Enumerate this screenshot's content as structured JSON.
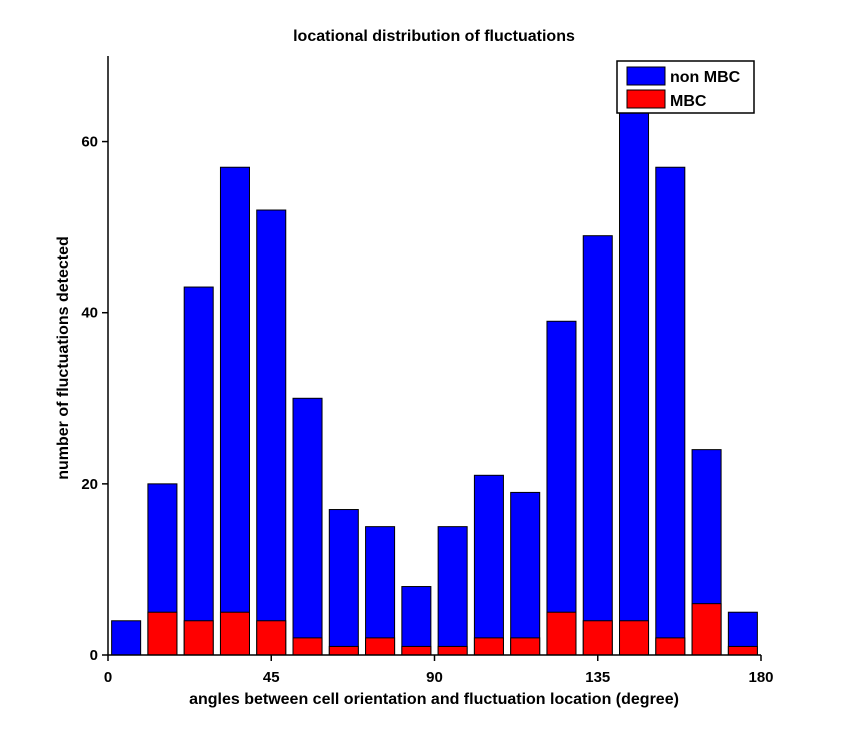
{
  "chart_data": {
    "type": "bar",
    "title": "locational distribution of fluctuations",
    "xlabel": "angles between cell orientation and fluctuation location (degree)",
    "ylabel": "number of fluctuations detected",
    "xlim": [
      0,
      180
    ],
    "ylim": [
      0,
      70
    ],
    "xticks": [
      0,
      45,
      90,
      135,
      180
    ],
    "yticks": [
      0,
      20,
      40,
      60
    ],
    "bin_centers": [
      5,
      15,
      25,
      35,
      45,
      55,
      65,
      75,
      85,
      95,
      105,
      115,
      125,
      135,
      145,
      155,
      165,
      175
    ],
    "bar_width": 8,
    "stacked": true,
    "grid": false,
    "legend_position": "top-right",
    "series": [
      {
        "name": "non MBC",
        "color": "#0000ff",
        "totals": [
          4,
          20,
          43,
          57,
          52,
          30,
          17,
          15,
          8,
          15,
          21,
          19,
          39,
          49,
          64,
          57,
          24,
          5
        ]
      },
      {
        "name": "MBC",
        "color": "#ff0000",
        "values": [
          0,
          5,
          4,
          5,
          4,
          2,
          1,
          2,
          1,
          1,
          2,
          2,
          5,
          4,
          4,
          2,
          6,
          1
        ]
      }
    ]
  }
}
